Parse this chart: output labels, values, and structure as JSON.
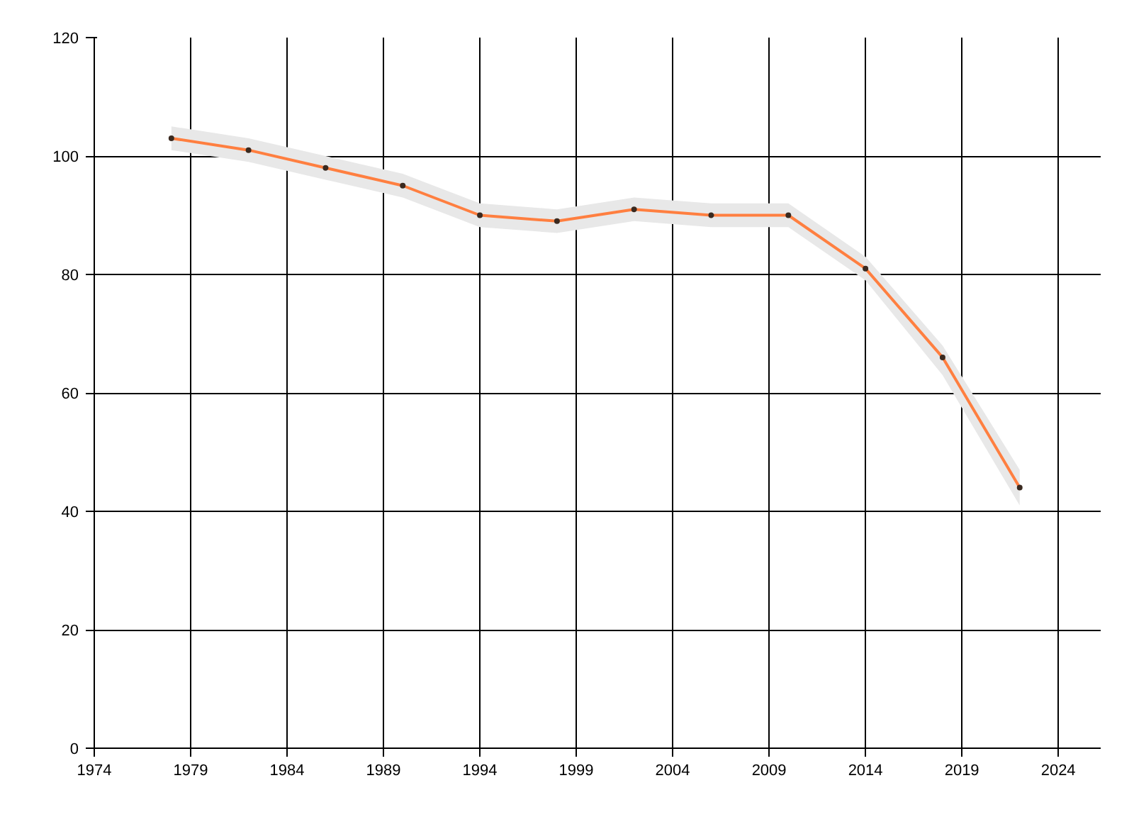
{
  "chart_data": {
    "type": "line",
    "x": [
      1978,
      1982,
      1986,
      1990,
      1994,
      1998,
      2002,
      2006,
      2010,
      2014,
      2018,
      2022
    ],
    "series": [
      {
        "color": "#ff7f40",
        "values": [
          103,
          101,
          98,
          95,
          90,
          89,
          91,
          90,
          90,
          81,
          66,
          44
        ],
        "lower": [
          101,
          99,
          96,
          93,
          88,
          87,
          89,
          88,
          88,
          79,
          63,
          41
        ],
        "upper": [
          105,
          103,
          100,
          97,
          92,
          91,
          93,
          92,
          92,
          83,
          68,
          47
        ]
      }
    ],
    "xlim": [
      1974,
      2026.2
    ],
    "xticks": [
      1974,
      1979,
      1984,
      1989,
      1994,
      1999,
      2004,
      2009,
      2014,
      2019,
      2024
    ],
    "ylim": [
      0,
      120
    ],
    "yticks": [
      0,
      20,
      40,
      60,
      80,
      100,
      120
    ],
    "grid": true,
    "marker": "circle",
    "line_style": "solid"
  }
}
